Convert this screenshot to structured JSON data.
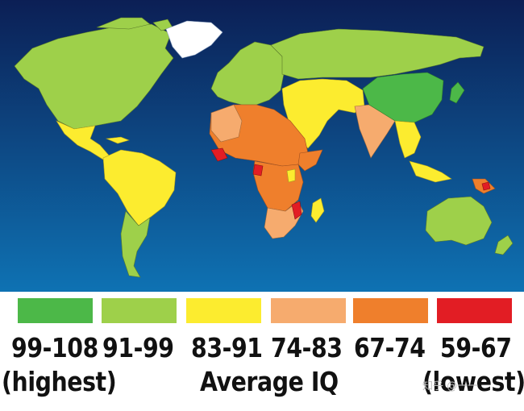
{
  "legend": {
    "items": [
      {
        "label": "99-108",
        "color": "#4cb848"
      },
      {
        "label": "91-99",
        "color": "#9ed04a"
      },
      {
        "label": "83-91",
        "color": "#fcec2f"
      },
      {
        "label": "74-83",
        "color": "#f6ab6e"
      },
      {
        "label": "67-74",
        "color": "#ef7f2c"
      },
      {
        "label": "59-67",
        "color": "#e21d24"
      }
    ],
    "highest_note": "(highest)",
    "caption": "Average IQ",
    "lowest_note": "(lowest)"
  },
  "watermark": "知乎 @一一",
  "colors": {
    "ocean_top": "#0c1f55",
    "ocean_bottom": "#0e72b3",
    "greenland": "#ffffff"
  }
}
